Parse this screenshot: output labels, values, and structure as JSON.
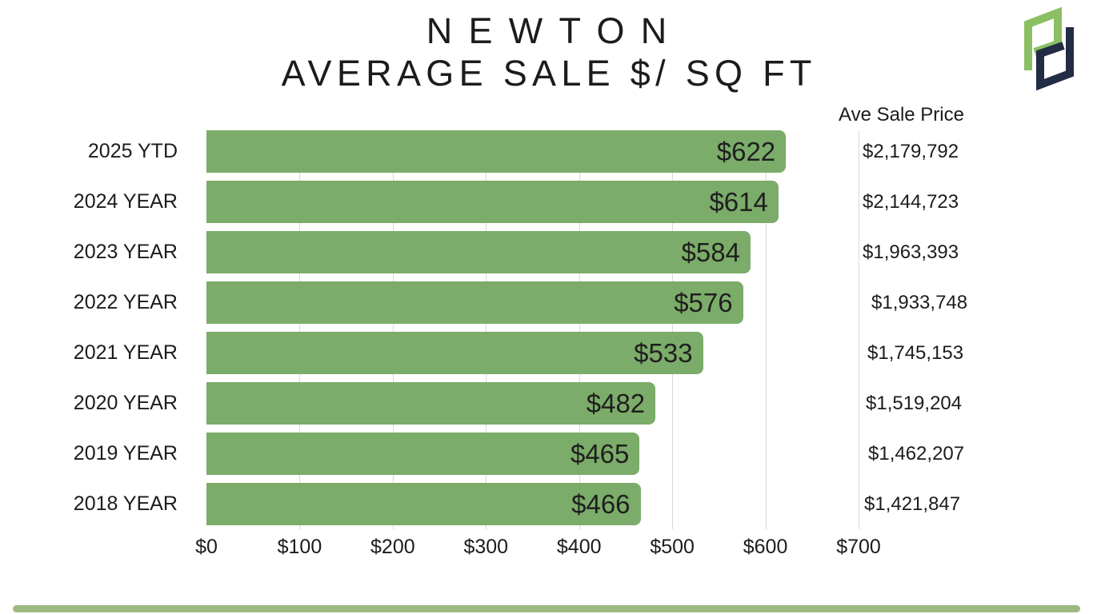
{
  "title": {
    "line1": "NEWTON",
    "line2": "AVERAGE SALE $/ SQ FT"
  },
  "price_column": {
    "header": "Ave Sale Price",
    "values": [
      "$2,179,792",
      "$2,144,723",
      "$1,963,393",
      "$1,933,748",
      "$1,745,153",
      "$1,519,204",
      "$1,462,207",
      "$1,421,847"
    ]
  },
  "chart_data": {
    "type": "bar",
    "orientation": "horizontal",
    "title": "NEWTON AVERAGE SALE $/ SQ FT",
    "categories": [
      "2025 YTD",
      "2024 YEAR",
      "2023 YEAR",
      "2022 YEAR",
      "2021 YEAR",
      "2020 YEAR",
      "2019 YEAR",
      "2018 YEAR"
    ],
    "values": [
      622,
      614,
      584,
      576,
      533,
      482,
      465,
      466
    ],
    "bar_labels": [
      "$622",
      "$614",
      "$584",
      "$576",
      "$533",
      "$482",
      "$465",
      "$466"
    ],
    "xlabel": "",
    "ylabel": "",
    "xlim": [
      0,
      700
    ],
    "x_tick_step": 100,
    "x_ticks": [
      "$0",
      "$100",
      "$200",
      "$300",
      "$400",
      "$500",
      "$600",
      "$700"
    ],
    "grid": true,
    "legend": "none",
    "bar_color": "#7bac69",
    "gridline_color": "#d9d9d9",
    "label_color": "#1f1f1f"
  },
  "logo": {
    "name": "Pd logo",
    "green": "#8cbf63",
    "navy": "#232c45"
  },
  "footer": {
    "accent_color": "#9cba80"
  }
}
